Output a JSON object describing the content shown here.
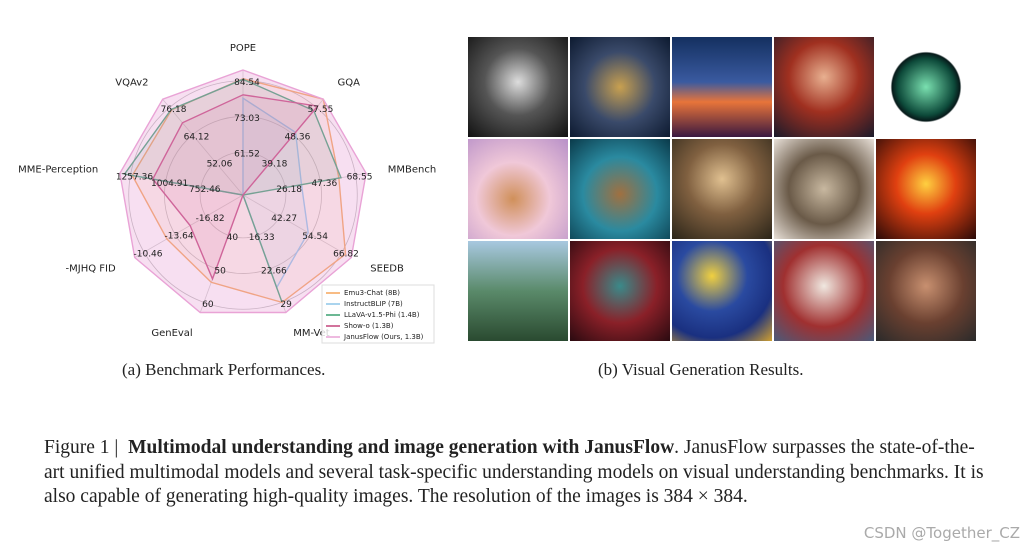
{
  "chart_data": {
    "type": "radar",
    "axes": [
      "POPE",
      "GQA",
      "MMBench",
      "SEEDB",
      "MM-Vet",
      "GenEval",
      "-MJHQ FID",
      "MME-Perception",
      "VQAv2"
    ],
    "axis_ticks": [
      [
        61.52,
        73.03,
        84.54
      ],
      [
        39.18,
        48.36,
        57.55
      ],
      [
        26.18,
        47.36,
        68.55
      ],
      [
        42.27,
        54.54,
        66.82
      ],
      [
        16.33,
        22.66,
        29.0
      ],
      [
        40.0,
        50.0,
        60.0
      ],
      [
        -16.82,
        -13.64,
        -10.46
      ],
      [
        752.46,
        1004.91,
        1257.36
      ],
      [
        52.06,
        64.12,
        76.18
      ]
    ],
    "axis_lims": [
      [
        47.7,
        88.0
      ],
      [
        28.2,
        60.3
      ],
      [
        0.8,
        74.9
      ],
      [
        27.5,
        70.5
      ],
      [
        8.7,
        30.9
      ],
      [
        28.0,
        63.0
      ],
      [
        -20.6,
        -9.51
      ],
      [
        449.5,
        1333.1
      ],
      [
        37.6,
        79.8
      ]
    ],
    "series": [
      {
        "name": "Emu3-Chat (8B)",
        "color": "#f5a55a",
        "values": [
          85.2,
          60.3,
          58.5,
          68.2,
          29.0,
          54.0,
          -12.8,
          1244.0,
          75.1
        ]
      },
      {
        "name": "InstructBLIP (7B)",
        "color": "#8ec5e8",
        "values": [
          78.9,
          49.2,
          36.0,
          53.4,
          26.2,
          28.0,
          -20.6,
          1212.8,
          37.6
        ]
      },
      {
        "name": "LLaVA-v1.5-Phi (1.4B)",
        "color": "#3aa070",
        "values": [
          85.0,
          56.5,
          59.8,
          27.5,
          28.9,
          28.0,
          -20.6,
          1300.0,
          75.3
        ]
      },
      {
        "name": "Show-o (1.3B)",
        "color": "#c2447a",
        "values": [
          80.0,
          58.0,
          0.8,
          27.5,
          8.7,
          53.0,
          -15.18,
          1097.2,
          69.4
        ]
      },
      {
        "name": "JanusFlow (Ours, 1.3B)",
        "color": "#e9a3d6",
        "values": [
          88.0,
          60.3,
          74.9,
          70.5,
          30.9,
          63.0,
          -9.51,
          1333.1,
          79.8
        ]
      }
    ]
  },
  "captions": {
    "a": "(a) Benchmark Performances.",
    "b": "(b) Visual Generation Results."
  },
  "figure": {
    "label": "Figure 1 |",
    "title": "Multimodal understanding and image generation with JanusFlow",
    "body": ". JanusFlow surpasses the state-of-the-art unified multimodal models and several task-specific understanding models on visual understanding benchmarks. It is also capable of generating high-quality images. The resolution of the images is 384 × 384."
  },
  "watermark": "CSDN @Together_CZ"
}
